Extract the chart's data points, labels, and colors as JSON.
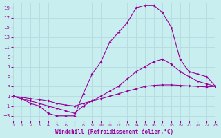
{
  "background_color": "#c8eef0",
  "line_color": "#990099",
  "grid_color": "#b8dde0",
  "xlabel": "Windchill (Refroidissement éolien,°C)",
  "xlabel_color": "#990099",
  "tick_color": "#990099",
  "xlim": [
    0,
    23
  ],
  "ylim": [
    -4,
    20
  ],
  "yticks": [
    -3,
    -1,
    1,
    3,
    5,
    7,
    9,
    11,
    13,
    15,
    17,
    19
  ],
  "xticks": [
    0,
    1,
    2,
    3,
    4,
    5,
    6,
    7,
    8,
    9,
    10,
    11,
    12,
    13,
    14,
    15,
    16,
    17,
    18,
    19,
    20,
    21,
    22,
    23
  ],
  "curve1_x": [
    0,
    1,
    2,
    3,
    4,
    5,
    6,
    7,
    8,
    9,
    10,
    11,
    12,
    13,
    14,
    15,
    16,
    17,
    18,
    19,
    20,
    21,
    22,
    23
  ],
  "curve1_y": [
    1,
    0.5,
    -0.5,
    -1,
    -2.5,
    -3,
    -3,
    -3,
    1.5,
    5.5,
    8,
    12,
    14,
    16,
    19,
    19.5,
    19.5,
    18,
    15,
    8.5,
    6,
    5.5,
    5,
    3
  ],
  "curve2_x": [
    0,
    1,
    2,
    3,
    4,
    5,
    6,
    7,
    8,
    9,
    10,
    11,
    12,
    13,
    14,
    15,
    16,
    17,
    18,
    19,
    20,
    21,
    22,
    23
  ],
  "curve2_y": [
    1,
    0.5,
    0,
    -0.5,
    -1,
    -1.5,
    -2,
    -2.5,
    -1,
    0,
    1,
    2,
    3,
    4.5,
    6,
    7,
    8,
    8.5,
    7.5,
    6,
    5,
    4,
    3.5,
    3
  ],
  "curve3_x": [
    0,
    1,
    2,
    3,
    4,
    5,
    6,
    7,
    8,
    9,
    10,
    11,
    12,
    13,
    14,
    15,
    16,
    17,
    18,
    19,
    20,
    21,
    22,
    23
  ],
  "curve3_y": [
    1,
    0.8,
    0.5,
    0.3,
    0,
    -0.5,
    -0.8,
    -1,
    -0.5,
    0,
    0.5,
    1,
    1.5,
    2,
    2.5,
    3,
    3.2,
    3.3,
    3.3,
    3.2,
    3.1,
    3.0,
    2.9,
    3
  ]
}
